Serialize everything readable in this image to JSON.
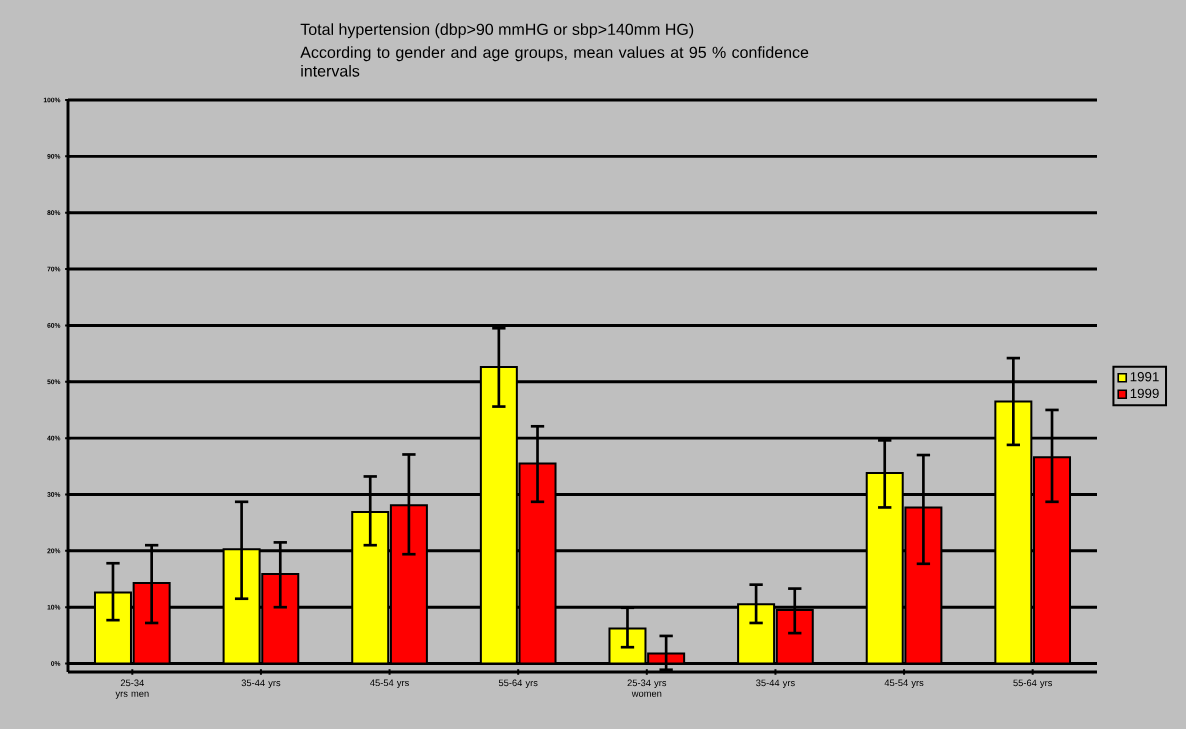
{
  "chart_data": {
    "type": "bar",
    "title": "Total hypertension (dbp>90 mmHG or sbp>140mm HG)",
    "subtitle": "According to gender and age groups, mean values at 95 % confidence intervals",
    "categories": [
      "25-34 yrs men",
      "35-44 yrs",
      "45-54 yrs",
      "55-64 yrs",
      "25-34 yrs women",
      "35-44 yrs",
      "45-54 yrs",
      "55-64 yrs"
    ],
    "series": [
      {
        "name": "1991",
        "color": "#ffff00",
        "values": [
          12.6,
          20.3,
          26.9,
          52.6,
          6.2,
          10.5,
          33.8,
          46.5
        ],
        "errors": [
          [
            7.7,
            17.8
          ],
          [
            11.5,
            28.7
          ],
          [
            21.0,
            33.2
          ],
          [
            45.6,
            59.5
          ],
          [
            2.9,
            9.9
          ],
          [
            7.2,
            14.0
          ],
          [
            27.7,
            39.6
          ],
          [
            38.8,
            54.2
          ]
        ]
      },
      {
        "name": "1999",
        "color": "#ff0000",
        "values": [
          14.3,
          15.9,
          28.1,
          35.5,
          1.8,
          9.5,
          27.7,
          36.6
        ],
        "errors": [
          [
            7.2,
            21.0
          ],
          [
            10.0,
            21.5
          ],
          [
            19.4,
            37.1
          ],
          [
            28.7,
            42.1
          ],
          [
            -1.1,
            4.9
          ],
          [
            5.4,
            13.3
          ],
          [
            17.7,
            37.0
          ],
          [
            28.7,
            45.0
          ]
        ]
      }
    ],
    "ylim": [
      -1.5,
      100
    ],
    "yticks": [
      {
        "value": 0,
        "label": "0%"
      },
      {
        "value": 10,
        "label": "10%"
      },
      {
        "value": 20,
        "label": "20%"
      },
      {
        "value": 30,
        "label": "30%"
      },
      {
        "value": 40,
        "label": "40%"
      },
      {
        "value": 50,
        "label": "50%"
      },
      {
        "value": 60,
        "label": "60%"
      },
      {
        "value": 70,
        "label": "70%"
      },
      {
        "value": 80,
        "label": "80%"
      },
      {
        "value": 90,
        "label": "90%"
      },
      {
        "value": 100,
        "label": "100%"
      }
    ],
    "grid": "y",
    "legend": "right"
  }
}
